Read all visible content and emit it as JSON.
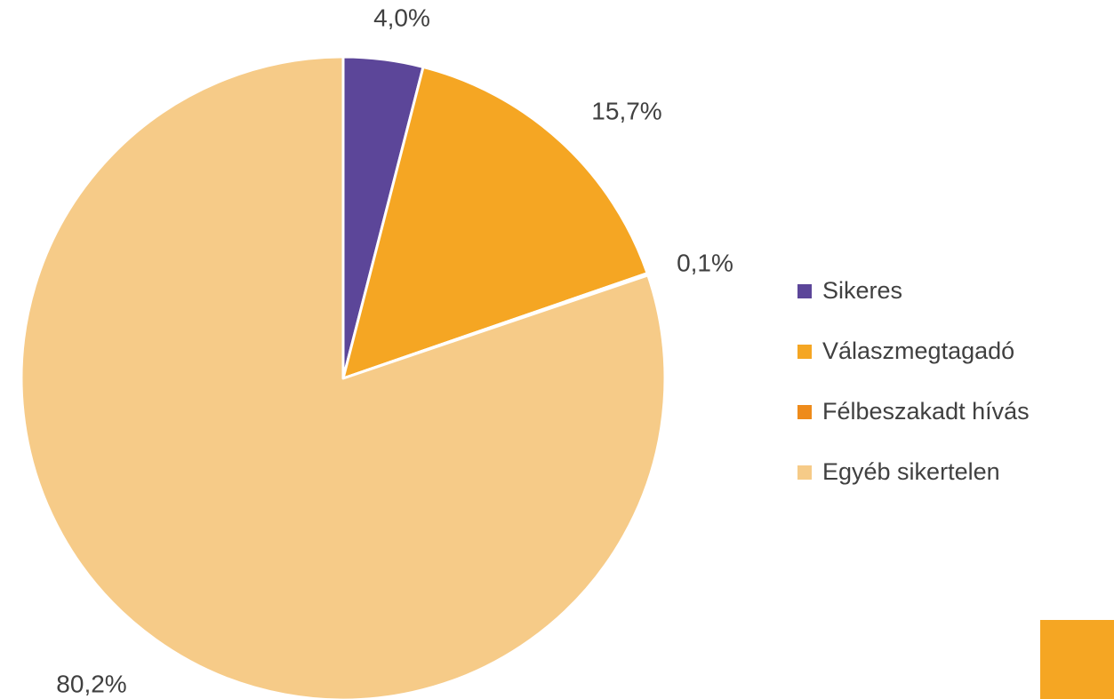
{
  "chart_data": {
    "type": "pie",
    "categories": [
      "Sikeres",
      "Válaszmegtagadó",
      "Félbeszakadt hívás",
      "Egyéb sikertelen"
    ],
    "values": [
      4.0,
      15.7,
      0.1,
      80.2
    ],
    "value_labels": [
      "4,0%",
      "15,7%",
      "0,1%",
      "80,2%"
    ],
    "colors": [
      "#5c4699",
      "#f5a623",
      "#ee8b1b",
      "#f6cb88"
    ],
    "legend": "right"
  }
}
